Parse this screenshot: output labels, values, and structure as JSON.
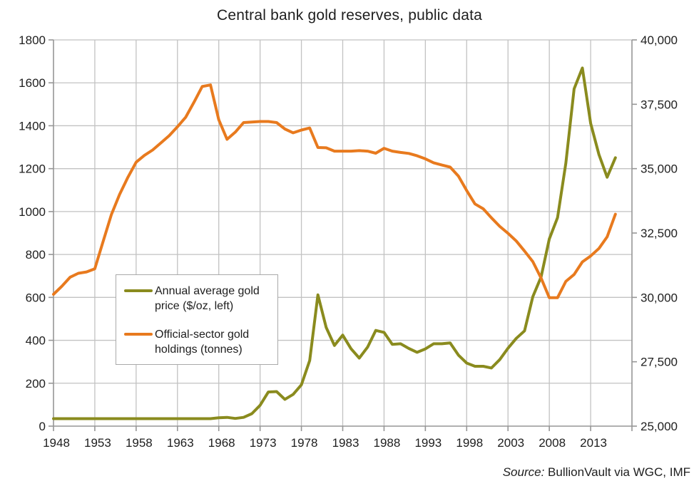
{
  "title": "Central bank gold reserves, public data",
  "source_note": {
    "prefix": "Source:",
    "text": "BullionVault via WGC, IMF"
  },
  "colors": {
    "gold_price_line": "#8a8b1e",
    "holdings_line": "#e87a1e",
    "gridline": "#c2c2c2",
    "axis": "#969696",
    "text": "#1e1e1e",
    "background": "#ffffff"
  },
  "legend": {
    "items": [
      {
        "label_line1": "Annual average gold",
        "label_line2": "price ($/oz, left)",
        "series": "gold_price"
      },
      {
        "label_line1": "Official-sector gold",
        "label_line2": "holdings (tonnes)",
        "series": "holdings"
      }
    ]
  },
  "chart_data": {
    "type": "line",
    "title": "Central bank gold reserves, public data",
    "xlabel": "",
    "ylabel_left": "Gold price ($/oz)",
    "ylabel_right": "Official-sector gold holdings (tonnes)",
    "grid": true,
    "legend_position": "middle-left",
    "x": [
      1948,
      1949,
      1950,
      1951,
      1952,
      1953,
      1954,
      1955,
      1956,
      1957,
      1958,
      1959,
      1960,
      1961,
      1962,
      1963,
      1964,
      1965,
      1966,
      1967,
      1968,
      1969,
      1970,
      1971,
      1972,
      1973,
      1974,
      1975,
      1976,
      1977,
      1978,
      1979,
      1980,
      1981,
      1982,
      1983,
      1984,
      1985,
      1986,
      1987,
      1988,
      1989,
      1990,
      1991,
      1992,
      1993,
      1994,
      1995,
      1996,
      1997,
      1998,
      1999,
      2000,
      2001,
      2002,
      2003,
      2004,
      2005,
      2006,
      2007,
      2008,
      2009,
      2010,
      2011,
      2012,
      2013,
      2014,
      2015,
      2016
    ],
    "series": [
      {
        "name": "Annual average gold price ($/oz, left)",
        "axis": "left",
        "color": "#8a8b1e",
        "values": [
          35,
          35,
          35,
          35,
          35,
          35,
          35,
          35,
          35,
          35,
          35,
          35,
          35,
          35,
          35,
          35,
          35,
          35,
          35,
          35,
          39,
          41,
          36,
          41,
          58,
          97,
          159,
          161,
          125,
          148,
          193,
          306,
          612,
          460,
          376,
          424,
          361,
          317,
          368,
          446,
          437,
          381,
          384,
          362,
          344,
          360,
          384,
          384,
          388,
          331,
          294,
          279,
          279,
          271,
          310,
          363,
          409,
          444,
          603,
          695,
          872,
          972,
          1225,
          1572,
          1669,
          1411,
          1266,
          1160,
          1251
        ]
      },
      {
        "name": "Official-sector gold holdings (tonnes)",
        "axis": "right",
        "color": "#e87a1e",
        "values": [
          30120,
          30430,
          30780,
          30935,
          30990,
          31110,
          32165,
          33210,
          34000,
          34665,
          35250,
          35515,
          35725,
          36000,
          36280,
          36625,
          37000,
          37580,
          38190,
          38250,
          36900,
          36140,
          36420,
          36790,
          36810,
          36830,
          36830,
          36790,
          36540,
          36390,
          36500,
          36580,
          35820,
          35810,
          35680,
          35680,
          35680,
          35700,
          35680,
          35600,
          35790,
          35680,
          35630,
          35590,
          35500,
          35380,
          35230,
          35140,
          35060,
          34710,
          34150,
          33630,
          33440,
          33090,
          32760,
          32490,
          32190,
          31800,
          31390,
          30750,
          29990,
          29990,
          30620,
          30890,
          31380,
          31610,
          31900,
          32350,
          33230
        ]
      }
    ],
    "axes": {
      "left": {
        "min": 0,
        "max": 1800,
        "tick_step": 200,
        "tick_labels": [
          "0",
          "200",
          "400",
          "600",
          "800",
          "1000",
          "1200",
          "1400",
          "1600",
          "1800"
        ]
      },
      "right": {
        "min": 25000,
        "max": 40000,
        "tick_step": 2500,
        "tick_labels": [
          "25,000",
          "27,500",
          "30,000",
          "32,500",
          "35,000",
          "37,500",
          "40,000"
        ]
      },
      "x": {
        "min": 1948,
        "max": 2018,
        "tick_step": 5,
        "first_tick": 1948,
        "last_tick": 2013,
        "tick_labels": [
          "1948",
          "1953",
          "1958",
          "1963",
          "1968",
          "1973",
          "1978",
          "1983",
          "1988",
          "1993",
          "1998",
          "2003",
          "2008",
          "2013"
        ]
      }
    }
  }
}
